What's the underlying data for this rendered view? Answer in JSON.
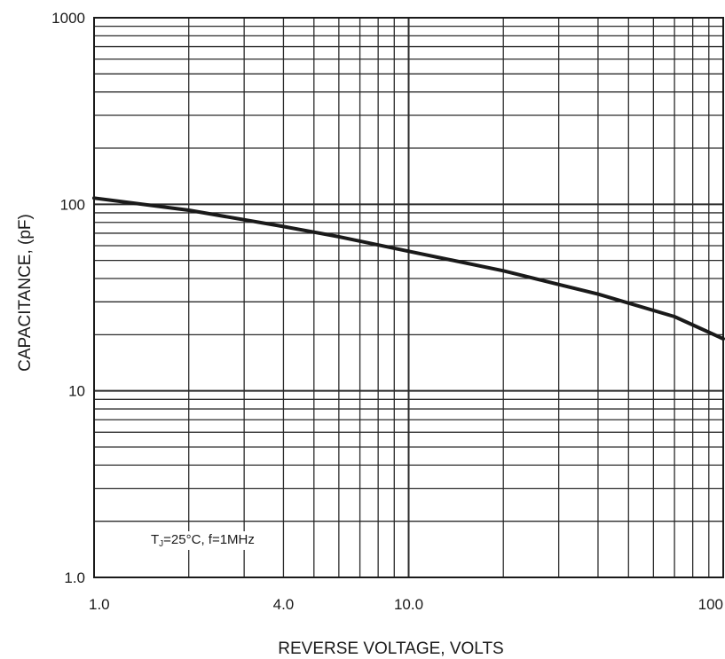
{
  "chart_data": {
    "type": "line",
    "title": "",
    "xlabel": "REVERSE VOLTAGE, VOLTS",
    "ylabel": "CAPACITANCE, (pF)",
    "x_scale": "log",
    "y_scale": "log",
    "xlim": [
      1,
      100
    ],
    "ylim": [
      1,
      1000
    ],
    "x_ticks": [
      {
        "value": 1,
        "label": "1.0"
      },
      {
        "value": 4,
        "label": "4.0"
      },
      {
        "value": 10,
        "label": "10.0"
      },
      {
        "value": 100,
        "label": "100"
      }
    ],
    "y_ticks": [
      {
        "value": 1,
        "label": "1.0"
      },
      {
        "value": 10,
        "label": "10"
      },
      {
        "value": 100,
        "label": "100"
      },
      {
        "value": 1000,
        "label": "1000"
      }
    ],
    "grid": true,
    "annotation": {
      "text": "TJ=25°C, f=1MHz"
    },
    "series": [
      {
        "x": [
          1,
          2,
          4,
          6,
          10,
          20,
          40,
          70,
          100
        ],
        "y": [
          108,
          93,
          76,
          67,
          56,
          44,
          33,
          25,
          19
        ]
      }
    ],
    "colors": {
      "line": "#1a1a1a",
      "grid": "#2a2a2a"
    }
  }
}
